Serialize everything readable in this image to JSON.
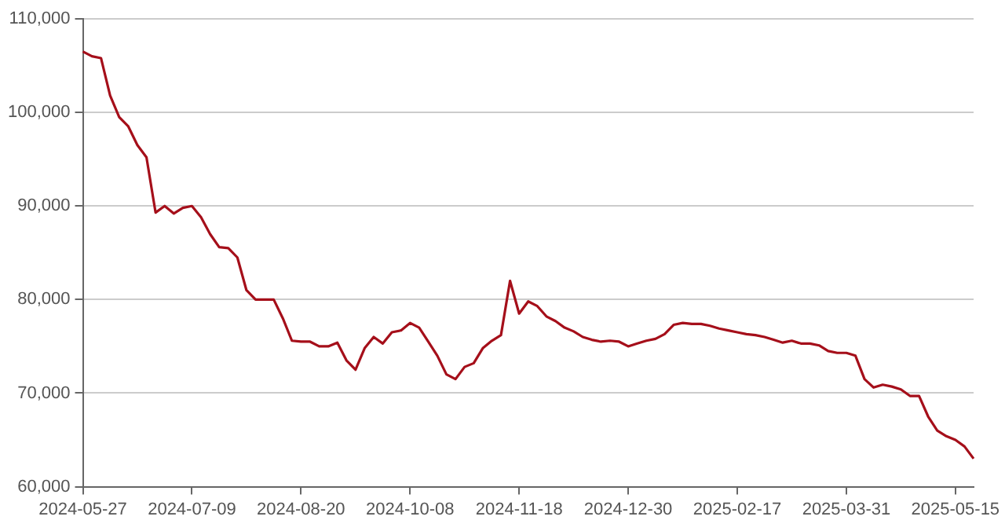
{
  "chart_data": {
    "type": "line",
    "categories": [
      "2024-05-27",
      null,
      null,
      null,
      null,
      null,
      null,
      null,
      null,
      null,
      null,
      null,
      "2024-07-09",
      null,
      null,
      null,
      null,
      null,
      null,
      null,
      null,
      null,
      null,
      null,
      "2024-08-20",
      null,
      null,
      null,
      null,
      null,
      null,
      null,
      null,
      null,
      null,
      null,
      "2024-10-08",
      null,
      null,
      null,
      null,
      null,
      null,
      null,
      null,
      null,
      null,
      null,
      "2024-11-18",
      null,
      null,
      null,
      null,
      null,
      null,
      null,
      null,
      null,
      null,
      null,
      "2024-12-30",
      null,
      null,
      null,
      null,
      null,
      null,
      null,
      null,
      null,
      null,
      null,
      "2025-02-17",
      null,
      null,
      null,
      null,
      null,
      null,
      null,
      null,
      null,
      null,
      null,
      "2025-03-31",
      null,
      null,
      null,
      null,
      null,
      null,
      null,
      null,
      null,
      null,
      null,
      "2025-05-15",
      null,
      null
    ],
    "values": [
      106500,
      106000,
      105800,
      101800,
      99500,
      98500,
      96500,
      95200,
      89300,
      90000,
      89200,
      89800,
      90000,
      88800,
      87000,
      85600,
      85500,
      84500,
      81000,
      80000,
      80000,
      80000,
      78000,
      75600,
      75500,
      75500,
      75000,
      75000,
      75400,
      73500,
      72500,
      74800,
      76000,
      75300,
      76500,
      76700,
      77500,
      77000,
      75500,
      74000,
      72000,
      71500,
      72800,
      73200,
      74800,
      75600,
      76200,
      82000,
      78500,
      79800,
      79300,
      78200,
      77700,
      77000,
      76600,
      76000,
      75700,
      75500,
      75600,
      75500,
      75000,
      75300,
      75600,
      75800,
      76300,
      77300,
      77500,
      77400,
      77400,
      77200,
      76900,
      76700,
      76500,
      76300,
      76200,
      76000,
      75700,
      75400,
      75600,
      75300,
      75300,
      75100,
      74500,
      74300,
      74300,
      74000,
      71500,
      70600,
      70900,
      70700,
      70400,
      69700,
      69700,
      67500,
      66000,
      65400,
      65000,
      64300,
      63000
    ],
    "color": "#a50f1a",
    "marker": "none",
    "grid": "y",
    "ylim": [
      60000,
      110000
    ],
    "yticks": [
      {
        "value": 60000,
        "label": "60,000"
      },
      {
        "value": 70000,
        "label": "70,000"
      },
      {
        "value": 80000,
        "label": "80,000"
      },
      {
        "value": 90000,
        "label": "90,000"
      },
      {
        "value": 100000,
        "label": "100,000"
      },
      {
        "value": 110000,
        "label": "110,000"
      }
    ]
  }
}
